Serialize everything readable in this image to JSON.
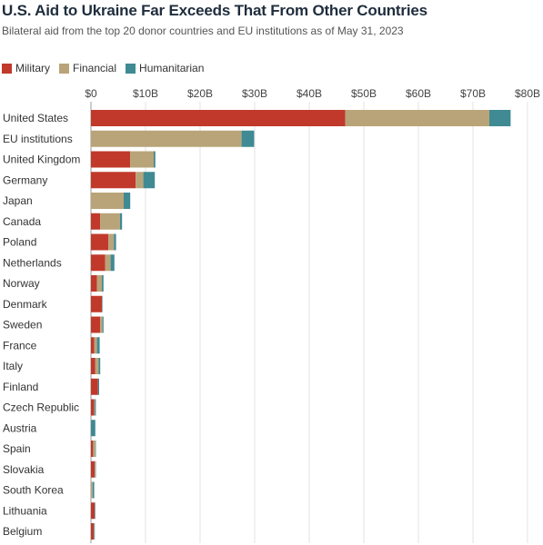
{
  "chart_data": {
    "type": "bar",
    "orientation": "horizontal",
    "stacked": true,
    "title": "U.S. Aid to Ukraine Far Exceeds That From Other Countries",
    "subtitle": "Bilateral aid from the top 20 donor countries and EU institutions as of May 31, 2023",
    "xlim": [
      0,
      80
    ],
    "x_ticks": [
      0,
      10,
      20,
      30,
      40,
      50,
      60,
      70,
      80
    ],
    "x_tick_labels": [
      "$0",
      "$10B",
      "$20B",
      "$30B",
      "$40B",
      "$50B",
      "$60B",
      "$70B",
      "$80B"
    ],
    "gridlines": "vertical",
    "legend_position": "top-left",
    "categories": [
      "United States",
      "EU institutions",
      "United Kingdom",
      "Germany",
      "Japan",
      "Canada",
      "Poland",
      "Netherlands",
      "Norway",
      "Denmark",
      "Sweden",
      "France",
      "Italy",
      "Finland",
      "Czech Republic",
      "Austria",
      "Spain",
      "Slovakia",
      "South Korea",
      "Lithuania",
      "Belgium"
    ],
    "series": [
      {
        "name": "Military",
        "color": "#c0392b",
        "values": [
          46.6,
          0,
          7.2,
          8.2,
          0,
          1.7,
          3.2,
          2.6,
          1.1,
          2.0,
          1.7,
          0.6,
          0.8,
          1.3,
          0.6,
          0,
          0.4,
          0.7,
          0,
          0.7,
          0.5
        ]
      },
      {
        "name": "Financial",
        "color": "#b9a479",
        "values": [
          26.4,
          27.6,
          4.3,
          1.4,
          6.0,
          3.6,
          1.0,
          1.0,
          0.9,
          0,
          0.4,
          0.5,
          0.6,
          0,
          0.1,
          0,
          0.4,
          0.1,
          0.3,
          0,
          0.1
        ]
      },
      {
        "name": "Humanitarian",
        "color": "#3f8a93",
        "values": [
          3.9,
          2.3,
          0.3,
          2.1,
          1.2,
          0.4,
          0.4,
          0.7,
          0.3,
          0.1,
          0.2,
          0.5,
          0.3,
          0.2,
          0.2,
          0.8,
          0.1,
          0.1,
          0.3,
          0.1,
          0.1
        ]
      }
    ]
  }
}
